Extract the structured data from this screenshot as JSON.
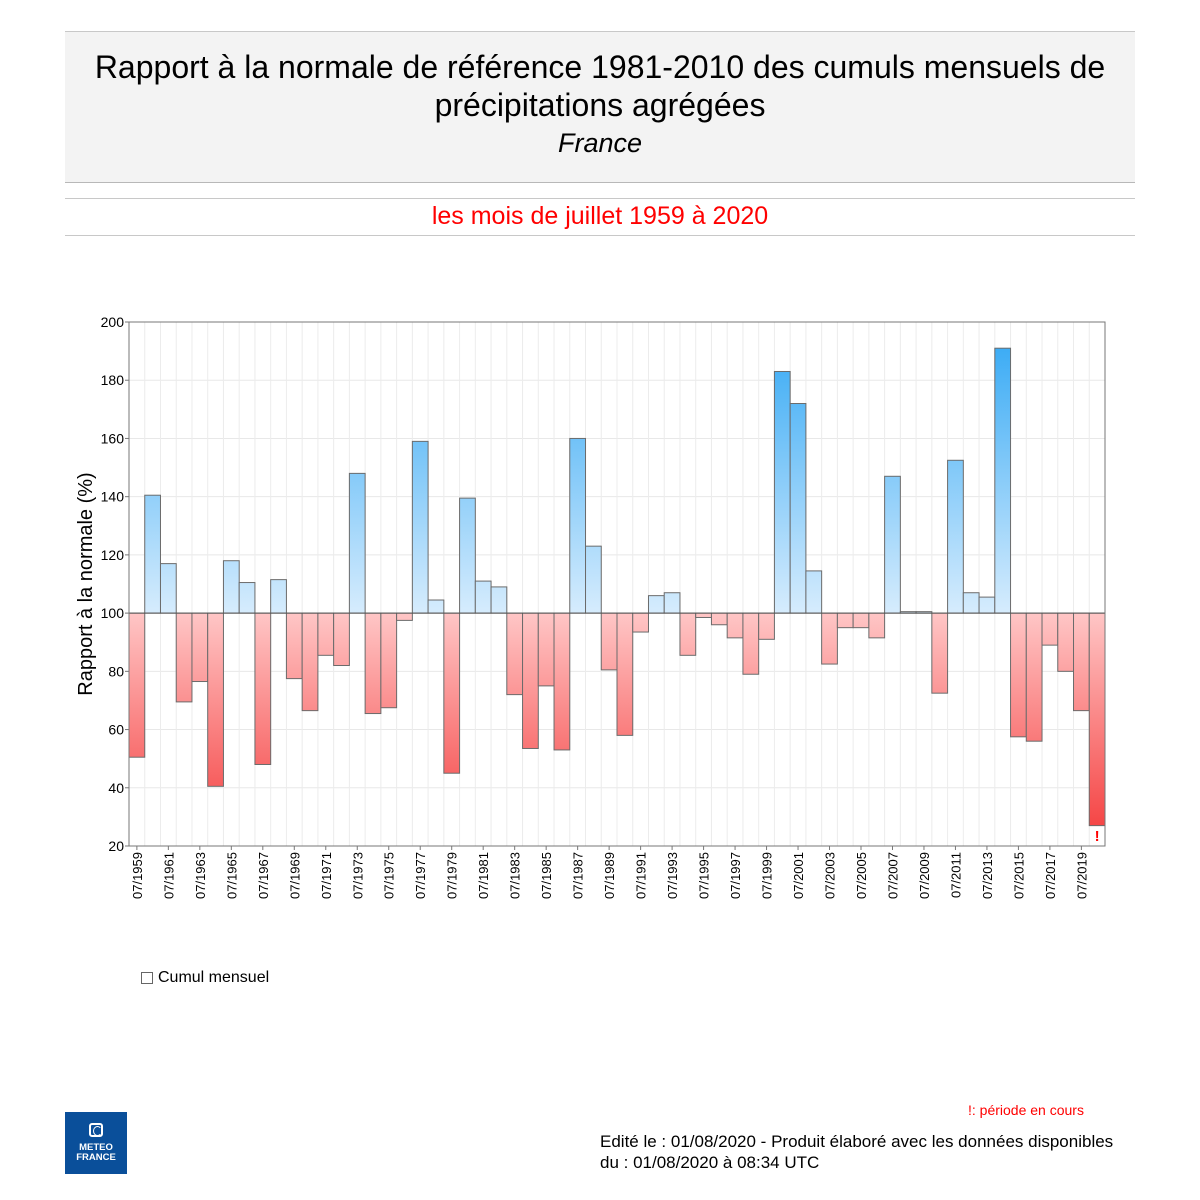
{
  "header": {
    "title": "Rapport à la normale de référence 1981-2010 des cumuls mensuels de précipitations agrégées",
    "region": "France",
    "period": "les mois de juillet 1959 à 2020"
  },
  "chart_data": {
    "type": "bar",
    "ylabel": "Rapport à la normale (%)",
    "xlabel": "",
    "ylim": [
      20,
      200
    ],
    "yticks": [
      20,
      40,
      60,
      80,
      100,
      120,
      140,
      160,
      180,
      200
    ],
    "baseline": 100,
    "grid": true,
    "categories": [
      "07/1959",
      "07/1960",
      "07/1961",
      "07/1962",
      "07/1963",
      "07/1964",
      "07/1965",
      "07/1966",
      "07/1967",
      "07/1968",
      "07/1969",
      "07/1970",
      "07/1971",
      "07/1972",
      "07/1973",
      "07/1974",
      "07/1975",
      "07/1976",
      "07/1977",
      "07/1978",
      "07/1979",
      "07/1980",
      "07/1981",
      "07/1982",
      "07/1983",
      "07/1984",
      "07/1985",
      "07/1986",
      "07/1987",
      "07/1988",
      "07/1989",
      "07/1990",
      "07/1991",
      "07/1992",
      "07/1993",
      "07/1994",
      "07/1995",
      "07/1996",
      "07/1997",
      "07/1998",
      "07/1999",
      "07/2000",
      "07/2001",
      "07/2002",
      "07/2003",
      "07/2004",
      "07/2005",
      "07/2006",
      "07/2007",
      "07/2008",
      "07/2009",
      "07/2010",
      "07/2011",
      "07/2012",
      "07/2013",
      "07/2014",
      "07/2015",
      "07/2016",
      "07/2017",
      "07/2018",
      "07/2019",
      "07/2020"
    ],
    "tick_labels": [
      "07/1959",
      "07/1961",
      "07/1963",
      "07/1965",
      "07/1967",
      "07/1969",
      "07/1971",
      "07/1973",
      "07/1975",
      "07/1977",
      "07/1979",
      "07/1981",
      "07/1983",
      "07/1985",
      "07/1987",
      "07/1989",
      "07/1991",
      "07/1993",
      "07/1995",
      "07/1997",
      "07/1999",
      "07/2001",
      "07/2003",
      "07/2005",
      "07/2007",
      "07/2009",
      "07/2011",
      "07/2013",
      "07/2015",
      "07/2017",
      "07/2019"
    ],
    "values": [
      50.5,
      140.5,
      117,
      69.5,
      76.5,
      40.5,
      118,
      110.5,
      48,
      111.5,
      77.5,
      66.5,
      85.5,
      82,
      148,
      65.5,
      67.5,
      97.5,
      159,
      104.5,
      45,
      139.5,
      111,
      109,
      72,
      53.5,
      75,
      53,
      160,
      123,
      80.5,
      58,
      93.5,
      106,
      107,
      85.5,
      98.5,
      96,
      91.5,
      79,
      91,
      183,
      172,
      114.5,
      82.5,
      95,
      95,
      91.5,
      147,
      100.5,
      100.5,
      72.5,
      152.5,
      107,
      105.5,
      191,
      57.5,
      56,
      89,
      80,
      66.5,
      27
    ],
    "current_period_marker": "!",
    "legend": [
      "Cumul mensuel"
    ],
    "colors": {
      "above_dark": "#2ea6f4",
      "above_light": "#d6ecfd",
      "below_light": "#ffc6c6",
      "below_dark": "#f43a3a",
      "marker": "#ff0000"
    }
  },
  "notes": {
    "current_period": "!: période en cours",
    "edited": "Edité le : 01/08/2020 - Produit élaboré avec les données disponibles du : 01/08/2020 à 08:34 UTC"
  },
  "logo": {
    "line1": "METEO",
    "line2": "FRANCE"
  }
}
